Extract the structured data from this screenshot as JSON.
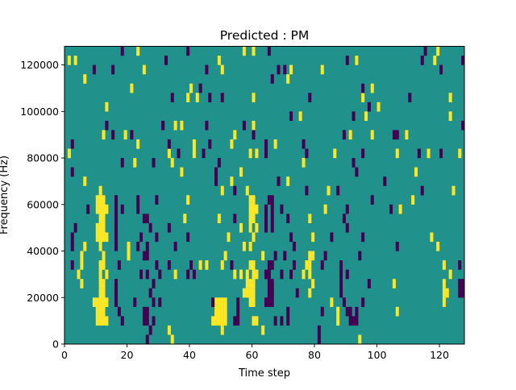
{
  "chart_data": {
    "type": "heatmap",
    "title": "Predicted : PM",
    "xlabel": "Time step",
    "ylabel": "Frequency (Hz)",
    "xlim": [
      0,
      128
    ],
    "ylim": [
      0,
      128000
    ],
    "n_cols": 128,
    "n_rows": 32,
    "row_height_hz": 4000,
    "xticks": [
      0,
      20,
      40,
      60,
      80,
      100,
      120
    ],
    "xtick_labels": [
      "0",
      "20",
      "40",
      "60",
      "80",
      "100",
      "120"
    ],
    "yticks": [
      0,
      20000,
      40000,
      60000,
      80000,
      100000,
      120000
    ],
    "ytick_labels": [
      "0",
      "20000",
      "40000",
      "60000",
      "80000",
      "100000",
      "120000"
    ],
    "colors": {
      "background": "#21918c",
      "high": "#fde725",
      "low": "#440154"
    },
    "background_value": 0,
    "high_value": 1,
    "low_value": -1,
    "high_cells_by_row": [
      [
        34,
        94
      ],
      [
        33,
        50,
        63
      ],
      [
        10,
        11,
        12,
        13,
        47,
        48,
        49,
        50,
        51,
        60,
        61,
        87
      ],
      [
        10,
        11,
        12,
        48,
        49,
        50,
        51,
        87,
        106
      ],
      [
        9,
        10,
        11,
        12,
        13,
        48,
        49,
        50,
        51,
        59,
        60,
        85,
        121
      ],
      [
        11,
        12,
        57,
        58,
        59,
        60,
        78,
        121,
        122
      ],
      [
        5,
        11,
        12,
        58,
        59,
        60,
        79,
        105,
        121
      ],
      [
        4,
        11,
        13,
        35,
        54,
        56,
        58,
        60,
        61,
        76,
        78,
        123
      ],
      [
        5,
        11,
        12,
        43,
        45,
        50,
        59,
        60,
        77,
        78,
        121
      ],
      [
        5,
        12,
        20,
        51,
        63,
        78,
        79
      ],
      [
        6,
        11,
        20,
        57,
        59,
        119
      ],
      [
        10,
        11,
        12,
        13,
        52,
        60,
        79,
        117
      ],
      [
        10,
        11,
        12,
        56,
        59,
        61
      ],
      [
        11,
        12,
        38,
        49,
        59,
        60,
        78
      ],
      [
        10,
        11,
        12,
        13,
        59,
        60,
        61,
        83,
        107
      ],
      [
        10,
        11,
        12,
        39,
        59,
        60,
        111
      ],
      [
        11,
        50,
        58,
        84,
        124
      ],
      [
        6,
        53,
        71
      ],
      [
        37,
        56,
        112
      ],
      [
        22,
        34,
        76
      ],
      [
        1,
        33,
        41,
        59,
        61,
        86,
        106,
        116,
        126
      ],
      [
        23,
        41,
        53,
        67
      ],
      [
        12,
        19,
        54,
        91,
        98,
        109
      ],
      [
        35,
        37,
        60
      ],
      [
        75,
        96,
        123
      ],
      [
        13,
        100
      ],
      [
        39,
        42,
        60,
        95,
        123
      ],
      [
        21,
        40,
        98
      ],
      [
        6,
        71
      ],
      [
        25,
        50,
        72,
        82
      ],
      [
        1,
        3,
        49,
        93,
        118
      ],
      [
        23,
        57,
        60,
        119
      ]
    ],
    "low_cells_by_row": [
      [
        26,
        81
      ],
      [
        27,
        81
      ],
      [
        18,
        25,
        26,
        28,
        54,
        55,
        67,
        69,
        71,
        91,
        92,
        93
      ],
      [
        17,
        25,
        26,
        55,
        71,
        82,
        90,
        91,
        93
      ],
      [
        16,
        22,
        28,
        30,
        47,
        55,
        64,
        65,
        66,
        89,
        95
      ],
      [
        16,
        27,
        65,
        66,
        74,
        88,
        126,
        127
      ],
      [
        16,
        28,
        65,
        66,
        88,
        97,
        126,
        127
      ],
      [
        24,
        26,
        30,
        39,
        41,
        64,
        65,
        69,
        72,
        88,
        90
      ],
      [
        2,
        17,
        29,
        33,
        40,
        53,
        65,
        66,
        73,
        82,
        88,
        126
      ],
      [
        25,
        26,
        67,
        70,
        83,
        94
      ],
      [
        2,
        16,
        23,
        26,
        35,
        73,
        106
      ],
      [
        2,
        16,
        24,
        29,
        39,
        72,
        85,
        95
      ],
      [
        3,
        16,
        27,
        33,
        64,
        66,
        90
      ],
      [
        16,
        25,
        26,
        54,
        64,
        66,
        71,
        89
      ],
      [
        7,
        16,
        18,
        23,
        64,
        66,
        69,
        90,
        104
      ],
      [
        16,
        23,
        29,
        65,
        66,
        98
      ],
      [
        54,
        77,
        87,
        114
      ],
      [
        48,
        68,
        102
      ],
      [
        2,
        48,
        93
      ],
      [
        18,
        28,
        49,
        92
      ],
      [
        36,
        44,
        64,
        77,
        95,
        113,
        120
      ],
      [
        2,
        33,
        46,
        64,
        76
      ],
      [
        15,
        21,
        60,
        89,
        105,
        106
      ],
      [
        13,
        31,
        45,
        57,
        127
      ],
      [
        72,
        92
      ],
      [
        97
      ],
      [
        34,
        46,
        50,
        78,
        110
      ],
      [
        43,
        95
      ],
      [
        66
      ],
      [
        9,
        15,
        45,
        68,
        70,
        120
      ],
      [
        32,
        90,
        114,
        127
      ],
      [
        18,
        39,
        65,
        115
      ]
    ]
  }
}
